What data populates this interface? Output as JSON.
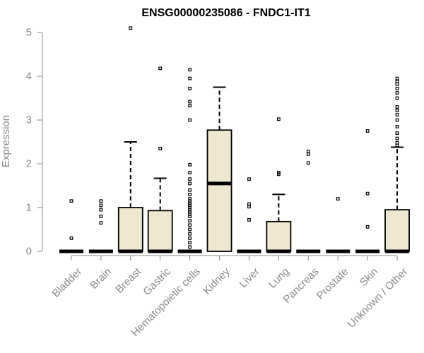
{
  "chart_data": {
    "type": "box",
    "title": "ENSG00000235086 - FNDC1-IT1",
    "xlabel": "",
    "ylabel": "Expression",
    "ylim": [
      0,
      5
    ],
    "yticks": [
      0,
      1,
      2,
      3,
      4,
      5
    ],
    "box_color": "#efe8d0",
    "grid": false,
    "categories": [
      "Bladder",
      "Brain",
      "Breast",
      "Gastric",
      "Hematopoietic cells",
      "Kidney",
      "Liver",
      "Lung",
      "Pancreas",
      "Prostate",
      "Skin",
      "Unknown / Other"
    ],
    "boxes": [
      {
        "q1": 0,
        "median": 0,
        "q3": 0,
        "whisker_low": 0,
        "whisker_high": 0,
        "outliers": [
          0.3,
          1.15
        ]
      },
      {
        "q1": 0,
        "median": 0,
        "q3": 0,
        "whisker_low": 0,
        "whisker_high": 0,
        "outliers": [
          0.65,
          0.8,
          0.95,
          1.05,
          1.15
        ]
      },
      {
        "q1": 0,
        "median": 0,
        "q3": 1.0,
        "whisker_low": 0,
        "whisker_high": 2.5,
        "outliers": [
          5.1
        ]
      },
      {
        "q1": 0,
        "median": 0,
        "q3": 0.93,
        "whisker_low": 0,
        "whisker_high": 1.67,
        "outliers": [
          2.35,
          4.18
        ]
      },
      {
        "q1": 0,
        "median": 0,
        "q3": 0,
        "whisker_low": 0,
        "whisker_high": 0,
        "outliers": [
          0.1,
          0.2,
          0.3,
          0.4,
          0.5,
          0.6,
          0.7,
          0.8,
          0.85,
          0.9,
          0.95,
          1.0,
          1.05,
          1.1,
          1.15,
          1.2,
          1.3,
          1.4,
          1.55,
          1.65,
          1.8,
          1.98,
          3.0,
          3.33,
          3.42,
          3.72,
          3.95,
          4.15
        ]
      },
      {
        "q1": 0,
        "median": 1.55,
        "q3": 2.77,
        "whisker_low": 0,
        "whisker_high": 3.75,
        "outliers": []
      },
      {
        "q1": 0,
        "median": 0,
        "q3": 0,
        "whisker_low": 0,
        "whisker_high": 0,
        "outliers": [
          0.72,
          1.02,
          1.08,
          1.65
        ]
      },
      {
        "q1": 0,
        "median": 0,
        "q3": 0.68,
        "whisker_low": 0,
        "whisker_high": 1.3,
        "outliers": [
          1.76,
          1.8,
          3.02
        ]
      },
      {
        "q1": 0,
        "median": 0,
        "q3": 0,
        "whisker_low": 0,
        "whisker_high": 0,
        "outliers": [
          2.02,
          2.22,
          2.28
        ]
      },
      {
        "q1": 0,
        "median": 0,
        "q3": 0,
        "whisker_low": 0,
        "whisker_high": 0,
        "outliers": [
          1.2
        ]
      },
      {
        "q1": 0,
        "median": 0,
        "q3": 0,
        "whisker_low": 0,
        "whisker_high": 0,
        "outliers": [
          0.56,
          1.32,
          2.75
        ]
      },
      {
        "q1": 0,
        "median": 0,
        "q3": 0.95,
        "whisker_low": 0,
        "whisker_high": 2.38,
        "outliers": [
          2.42,
          2.48,
          2.58,
          2.7,
          2.85,
          3.0,
          3.12,
          3.22,
          3.3,
          3.5,
          3.62,
          3.72,
          3.82,
          3.88,
          3.95
        ]
      }
    ]
  }
}
